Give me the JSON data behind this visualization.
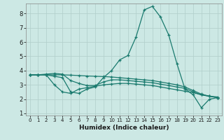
{
  "xlabel": "Humidex (Indice chaleur)",
  "bg_color": "#cce8e4",
  "grid_color": "#b0ceca",
  "line_color": "#1a7a6e",
  "xlim": [
    -0.5,
    23.5
  ],
  "ylim": [
    0.85,
    8.7
  ],
  "xticks": [
    0,
    1,
    2,
    3,
    4,
    5,
    6,
    7,
    8,
    9,
    10,
    11,
    12,
    13,
    14,
    15,
    16,
    17,
    18,
    19,
    20,
    21,
    22,
    23
  ],
  "yticks": [
    1,
    2,
    3,
    4,
    5,
    6,
    7,
    8
  ],
  "line1_x": [
    0,
    1,
    2,
    3,
    4,
    5,
    6,
    7,
    8,
    9,
    10,
    11,
    12,
    13,
    14,
    15,
    16,
    17,
    18,
    19,
    20,
    21,
    22,
    23
  ],
  "line1_y": [
    3.7,
    3.7,
    3.7,
    3.6,
    3.5,
    2.5,
    2.4,
    2.7,
    2.85,
    3.5,
    4.0,
    4.75,
    5.05,
    6.35,
    8.25,
    8.5,
    7.75,
    6.5,
    4.5,
    2.7,
    2.3,
    1.4,
    2.0,
    2.1
  ],
  "line2_x": [
    0,
    1,
    2,
    3,
    4,
    5,
    6,
    7,
    8,
    9,
    10,
    11,
    12,
    13,
    14,
    15,
    16,
    17,
    18,
    19,
    20,
    21,
    22,
    23
  ],
  "line2_y": [
    3.7,
    3.7,
    3.7,
    3.0,
    2.5,
    2.4,
    2.7,
    2.8,
    2.9,
    3.0,
    3.05,
    3.1,
    3.1,
    3.05,
    3.0,
    2.95,
    2.85,
    2.75,
    2.65,
    2.55,
    2.45,
    2.3,
    2.2,
    2.1
  ],
  "line3_x": [
    0,
    1,
    2,
    3,
    4,
    5,
    6,
    7,
    8,
    9,
    10,
    11,
    12,
    13,
    14,
    15,
    16,
    17,
    18,
    19,
    20,
    21,
    22,
    23
  ],
  "line3_y": [
    3.7,
    3.7,
    3.75,
    3.8,
    3.75,
    3.3,
    3.1,
    2.95,
    2.95,
    3.2,
    3.35,
    3.35,
    3.3,
    3.25,
    3.2,
    3.15,
    3.05,
    2.95,
    2.85,
    2.75,
    2.5,
    2.3,
    2.2,
    2.15
  ],
  "line4_x": [
    0,
    1,
    2,
    3,
    4,
    5,
    6,
    7,
    8,
    9,
    10,
    11,
    12,
    13,
    14,
    15,
    16,
    17,
    18,
    19,
    20,
    21,
    22,
    23
  ],
  "line4_y": [
    3.7,
    3.7,
    3.7,
    3.7,
    3.7,
    3.68,
    3.65,
    3.62,
    3.6,
    3.58,
    3.55,
    3.5,
    3.45,
    3.4,
    3.35,
    3.3,
    3.2,
    3.1,
    3.0,
    2.85,
    2.6,
    2.35,
    2.2,
    2.1
  ]
}
